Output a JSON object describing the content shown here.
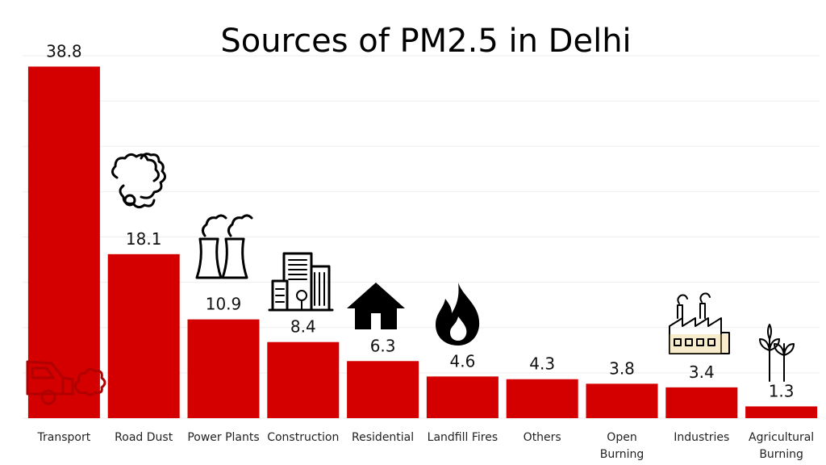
{
  "chart_data": {
    "type": "bar",
    "title": "Sources of PM2.5 in Delhi",
    "xlabel": "",
    "ylabel": "",
    "ylim": [
      0,
      40
    ],
    "grid": true,
    "bar_color": "#d40000",
    "categories": [
      [
        "Transport"
      ],
      [
        "Road Dust"
      ],
      [
        "Power Plants"
      ],
      [
        "Construction"
      ],
      [
        "Residential"
      ],
      [
        "Landfill Fires"
      ],
      [
        "Others"
      ],
      [
        "Open",
        "Burning"
      ],
      [
        "Industries"
      ],
      [
        "Agricultural",
        "Burning"
      ]
    ],
    "values": [
      38.8,
      18.1,
      10.9,
      8.4,
      6.3,
      4.6,
      4.3,
      3.8,
      3.4,
      1.3
    ],
    "value_labels": [
      "38.8",
      "18.1",
      "10.9",
      "8.4",
      "6.3",
      "4.6",
      "4.3",
      "3.8",
      "3.4",
      "1.3"
    ],
    "icons": [
      "car-exhaust-icon",
      "dust-cloud-icon",
      "cooling-tower-icon",
      "buildings-icon",
      "house-icon",
      "fire-icon",
      "",
      "",
      "factory-icon",
      "plant-sprout-icon"
    ]
  }
}
